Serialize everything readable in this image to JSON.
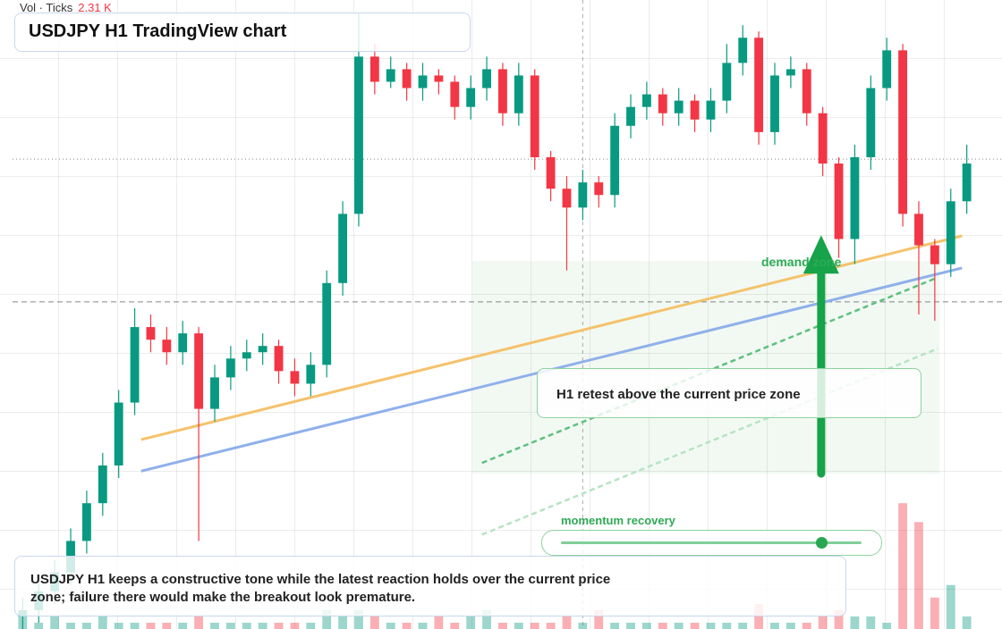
{
  "chart_data": {
    "type": "candlestick",
    "title": "USDJPY H1 TradingView chart",
    "volume_label": "Vol · Ticks",
    "volume_total": "2.31 K",
    "xlim": [
      -0.3,
      59.3
    ],
    "ylim": [
      0,
      100
    ],
    "up_color": "#089981",
    "down_color": "#f23645",
    "open": [
      2,
      3,
      6,
      9,
      14,
      20,
      26,
      36,
      48,
      46,
      44,
      47,
      35,
      40,
      43,
      44,
      45,
      41,
      39,
      42,
      55,
      66,
      91,
      87,
      89,
      86,
      88,
      87,
      83,
      86,
      89,
      82,
      88,
      75,
      70,
      67,
      71,
      69,
      80,
      83,
      85,
      82,
      84,
      81,
      84,
      90,
      94,
      79,
      88,
      89,
      82,
      74,
      62,
      75,
      86,
      92,
      66,
      61,
      58,
      68
    ],
    "high": [
      5,
      8,
      11,
      16,
      22,
      28,
      38,
      51,
      50,
      48,
      49,
      48,
      42,
      45,
      46,
      47,
      46,
      43,
      44,
      57,
      68,
      98,
      93,
      91,
      90,
      90,
      89,
      88,
      88,
      91,
      90,
      90,
      89,
      76,
      72,
      73,
      72,
      82,
      85,
      87,
      86,
      86,
      85,
      86,
      93,
      96,
      95,
      90,
      91,
      90,
      83,
      75,
      77,
      88,
      94,
      93,
      68,
      62,
      70,
      77
    ],
    "low": [
      0,
      1,
      4,
      7,
      12,
      18,
      24,
      34,
      44,
      42,
      42,
      14,
      33,
      38,
      41,
      42,
      39,
      37,
      37,
      40,
      53,
      64,
      85,
      86,
      84,
      84,
      85,
      81,
      81,
      84,
      80,
      80,
      73,
      68,
      57,
      65,
      67,
      67,
      78,
      81,
      80,
      80,
      79,
      79,
      82,
      88,
      77,
      77,
      86,
      80,
      72,
      59,
      58,
      73,
      84,
      64,
      50,
      49,
      56,
      66
    ],
    "close": [
      3,
      6,
      9,
      14,
      20,
      26,
      36,
      48,
      46,
      44,
      47,
      35,
      40,
      43,
      44,
      45,
      41,
      39,
      42,
      55,
      66,
      91,
      87,
      89,
      86,
      88,
      87,
      83,
      86,
      89,
      82,
      88,
      75,
      70,
      67,
      71,
      69,
      80,
      83,
      85,
      82,
      84,
      81,
      84,
      90,
      94,
      79,
      88,
      89,
      82,
      74,
      62,
      75,
      86,
      92,
      66,
      61,
      58,
      68,
      74
    ],
    "volume": [
      2,
      1,
      2,
      1,
      1,
      2,
      1,
      1,
      1,
      1,
      1,
      2,
      1,
      1,
      1,
      1,
      1,
      1,
      1,
      3,
      2,
      3,
      2,
      1,
      1,
      1,
      2,
      1,
      2,
      3,
      1,
      1,
      1,
      1,
      2,
      1,
      3,
      1,
      1,
      1,
      1,
      1,
      1,
      1,
      1,
      1,
      4,
      1,
      1,
      1,
      2,
      3,
      2,
      2,
      1,
      20,
      17,
      5,
      7,
      2
    ],
    "zone": {
      "label": "demand zone",
      "x": [
        28.1,
        57.3
      ],
      "values": [
        24.7,
        58.5
      ],
      "color": "#4caf50"
    },
    "arrow": {
      "x": 49.9,
      "values": [
        24.7,
        62.6
      ],
      "color": "#16a34a"
    },
    "trendlines": [
      {
        "x": [
          7.4,
          58.7
        ],
        "values": [
          30.1,
          62.5
        ],
        "color": "#f5c26b",
        "style": "solid"
      },
      {
        "x": [
          7.4,
          58.7
        ],
        "values": [
          25.1,
          57.4
        ],
        "color": "#8fb0ea",
        "style": "solid"
      },
      {
        "x": [
          28.7,
          57.0
        ],
        "values": [
          26.4,
          55.7
        ],
        "color": "#5cc17d",
        "style": "dashed"
      },
      {
        "x": [
          28.7,
          57.2
        ],
        "values": [
          15.0,
          44.6
        ],
        "color": "#b6e3c3",
        "style": "dashed"
      }
    ],
    "hlines": [
      {
        "value": 74.7,
        "style": "dotted"
      },
      {
        "value": 52,
        "style": "dashed"
      }
    ],
    "vline": 35.0,
    "annotation": "H1 retest above the current price zone",
    "slider_label": "momentum recovery",
    "footer": "USDJPY H1 keeps a constructive tone while the latest reaction holds over the current price zone; failure there would make the breakout look premature."
  }
}
